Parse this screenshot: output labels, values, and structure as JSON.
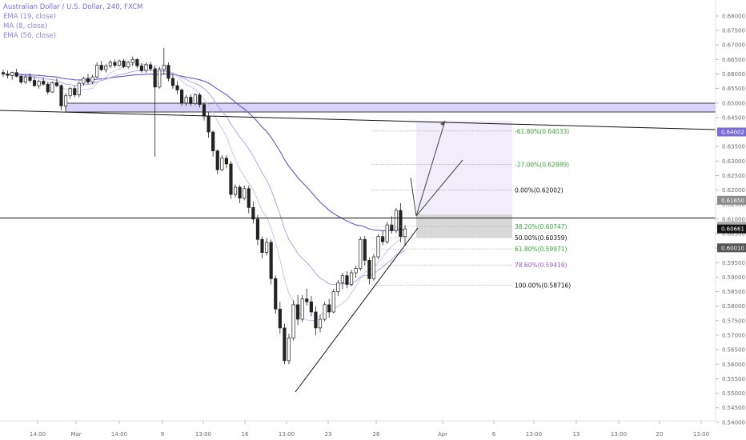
{
  "header": {
    "title": "Australian Dollar / U.S. Dollar, 240, FXCM",
    "indicators": [
      "EMA (19, close)",
      "MA (8, close)",
      "EMA (50, close)"
    ]
  },
  "chart_data": {
    "type": "candlestick",
    "ylim": [
      0.5405,
      0.6855
    ],
    "y_ticks": [
      "0.68000",
      "0.67500",
      "0.67000",
      "0.66500",
      "0.66000",
      "0.65500",
      "0.65000",
      "0.64500",
      "0.64000",
      "0.63500",
      "0.63000",
      "0.62500",
      "0.62000",
      "0.61500",
      "0.61000",
      "0.60500",
      "0.60000",
      "0.59500",
      "0.59000",
      "0.58500",
      "0.58000",
      "0.57500",
      "0.57000",
      "0.56500",
      "0.56000",
      "0.55500",
      "0.55000",
      "0.54500",
      "0.54000"
    ],
    "x_ticks": [
      "14:00",
      "Mar",
      "14:00",
      "9",
      "13:00",
      "16",
      "13:00",
      "23",
      "26",
      "Apr",
      "6",
      "13:00",
      "13",
      "13:00",
      "20",
      "13:00"
    ],
    "price_tags": [
      {
        "label": "0.64002",
        "value": 0.64002,
        "color": "#7b6bd6"
      },
      {
        "label": "0.61650",
        "value": 0.6165,
        "color": "#8a8a8a"
      },
      {
        "label": "0.60755",
        "value": 0.60755,
        "color": "#a9a9a9"
      },
      {
        "label": "0.60661",
        "value": 0.60661,
        "color": "#111111"
      },
      {
        "label": "0.60010",
        "value": 0.6001,
        "color": "#555555"
      }
    ],
    "fib_levels": [
      {
        "label": "-61.80%(0.64033)",
        "value": 0.64033,
        "color": "#3aa23a"
      },
      {
        "label": "-27.00%(0.62889)",
        "value": 0.62889,
        "color": "#3aa23a"
      },
      {
        "label": "0.00%(0.62002)",
        "value": 0.62002,
        "color": "#111111"
      },
      {
        "label": "38.20%(0.60747)",
        "value": 0.60747,
        "color": "#3aa23a"
      },
      {
        "label": "50.00%(0.60359)",
        "value": 0.60359,
        "color": "#111111"
      },
      {
        "label": "61.80%(0.59971)",
        "value": 0.59971,
        "color": "#3aa23a"
      },
      {
        "label": "78.60%(0.59419)",
        "value": 0.59419,
        "color": "#9a5ac8"
      },
      {
        "label": "100.00%(0.58716)",
        "value": 0.58716,
        "color": "#111111"
      }
    ],
    "candles": [
      [
        0.6605,
        0.6615,
        0.659,
        0.66
      ],
      [
        0.66,
        0.6612,
        0.6585,
        0.6595
      ],
      [
        0.6595,
        0.6608,
        0.658,
        0.6605
      ],
      [
        0.6605,
        0.6618,
        0.6588,
        0.6592
      ],
      [
        0.6592,
        0.66,
        0.6565,
        0.6572
      ],
      [
        0.6572,
        0.6595,
        0.6565,
        0.659
      ],
      [
        0.659,
        0.6602,
        0.657,
        0.6578
      ],
      [
        0.6578,
        0.659,
        0.6555,
        0.656
      ],
      [
        0.656,
        0.658,
        0.655,
        0.6575
      ],
      [
        0.6575,
        0.6588,
        0.656,
        0.6565
      ],
      [
        0.6565,
        0.6572,
        0.653,
        0.6538
      ],
      [
        0.6538,
        0.6575,
        0.6535,
        0.657
      ],
      [
        0.657,
        0.6585,
        0.6555,
        0.656
      ],
      [
        0.656,
        0.6565,
        0.6475,
        0.649
      ],
      [
        0.649,
        0.6535,
        0.648,
        0.6525
      ],
      [
        0.6525,
        0.6555,
        0.6515,
        0.655
      ],
      [
        0.655,
        0.656,
        0.652,
        0.6528
      ],
      [
        0.6528,
        0.6575,
        0.652,
        0.6568
      ],
      [
        0.6568,
        0.659,
        0.656,
        0.6585
      ],
      [
        0.6585,
        0.66,
        0.6565,
        0.6572
      ],
      [
        0.6572,
        0.6598,
        0.6565,
        0.659
      ],
      [
        0.659,
        0.664,
        0.6585,
        0.663
      ],
      [
        0.663,
        0.6645,
        0.661,
        0.6615
      ],
      [
        0.6615,
        0.6635,
        0.6605,
        0.6628
      ],
      [
        0.6628,
        0.6648,
        0.662,
        0.664
      ],
      [
        0.664,
        0.665,
        0.6622,
        0.663
      ],
      [
        0.663,
        0.665,
        0.6625,
        0.6645
      ],
      [
        0.6645,
        0.6652,
        0.662,
        0.6625
      ],
      [
        0.6625,
        0.6645,
        0.6618,
        0.664
      ],
      [
        0.664,
        0.666,
        0.6628,
        0.665
      ],
      [
        0.665,
        0.6655,
        0.662,
        0.6628
      ],
      [
        0.6628,
        0.6638,
        0.6605,
        0.6612
      ],
      [
        0.6612,
        0.664,
        0.6605,
        0.6632
      ],
      [
        0.6632,
        0.6642,
        0.661,
        0.6618
      ],
      [
        0.6618,
        0.663,
        0.6315,
        0.6555
      ],
      [
        0.6555,
        0.6625,
        0.655,
        0.6615
      ],
      [
        0.6615,
        0.669,
        0.66,
        0.663
      ],
      [
        0.663,
        0.664,
        0.6575,
        0.6585
      ],
      [
        0.6585,
        0.66,
        0.6548,
        0.656
      ],
      [
        0.656,
        0.6575,
        0.653,
        0.6545
      ],
      [
        0.6545,
        0.655,
        0.649,
        0.65
      ],
      [
        0.65,
        0.6528,
        0.649,
        0.652
      ],
      [
        0.652,
        0.653,
        0.649,
        0.6498
      ],
      [
        0.6498,
        0.6535,
        0.6492,
        0.6528
      ],
      [
        0.6528,
        0.6535,
        0.6485,
        0.6495
      ],
      [
        0.6495,
        0.6502,
        0.644,
        0.6455
      ],
      [
        0.6455,
        0.647,
        0.638,
        0.64
      ],
      [
        0.64,
        0.6405,
        0.6315,
        0.6335
      ],
      [
        0.6335,
        0.634,
        0.6255,
        0.627
      ],
      [
        0.627,
        0.632,
        0.6265,
        0.631
      ],
      [
        0.631,
        0.632,
        0.6275,
        0.629
      ],
      [
        0.629,
        0.63,
        0.617,
        0.6185
      ],
      [
        0.6185,
        0.622,
        0.6175,
        0.621
      ],
      [
        0.621,
        0.6218,
        0.6155,
        0.6172
      ],
      [
        0.6172,
        0.6215,
        0.6165,
        0.6205
      ],
      [
        0.6205,
        0.6215,
        0.612,
        0.614
      ],
      [
        0.614,
        0.616,
        0.6085,
        0.61
      ],
      [
        0.61,
        0.6115,
        0.601,
        0.603
      ],
      [
        0.603,
        0.604,
        0.5965,
        0.5985
      ],
      [
        0.5985,
        0.6035,
        0.5975,
        0.602
      ],
      [
        0.602,
        0.603,
        0.5875,
        0.5895
      ],
      [
        0.5895,
        0.5905,
        0.5775,
        0.579
      ],
      [
        0.579,
        0.5815,
        0.5705,
        0.5725
      ],
      [
        0.5725,
        0.574,
        0.56,
        0.5612
      ],
      [
        0.5612,
        0.5705,
        0.56,
        0.569
      ],
      [
        0.569,
        0.582,
        0.5682,
        0.5805
      ],
      [
        0.5805,
        0.5838,
        0.5735,
        0.5755
      ],
      [
        0.5755,
        0.5838,
        0.5745,
        0.5825
      ],
      [
        0.5825,
        0.586,
        0.5802,
        0.5815
      ],
      [
        0.5815,
        0.5835,
        0.5765,
        0.578
      ],
      [
        0.578,
        0.58,
        0.57,
        0.5725
      ],
      [
        0.5725,
        0.577,
        0.571,
        0.5755
      ],
      [
        0.5755,
        0.5815,
        0.5748,
        0.5805
      ],
      [
        0.5805,
        0.5825,
        0.576,
        0.578
      ],
      [
        0.578,
        0.586,
        0.5775,
        0.585
      ],
      [
        0.585,
        0.589,
        0.5835,
        0.588
      ],
      [
        0.588,
        0.5915,
        0.586,
        0.5905
      ],
      [
        0.5905,
        0.592,
        0.5862,
        0.5875
      ],
      [
        0.5875,
        0.5925,
        0.5868,
        0.5915
      ],
      [
        0.5915,
        0.594,
        0.5898,
        0.593
      ],
      [
        0.593,
        0.604,
        0.5922,
        0.603
      ],
      [
        0.603,
        0.6042,
        0.594,
        0.5958
      ],
      [
        0.5958,
        0.5968,
        0.5875,
        0.5895
      ],
      [
        0.5895,
        0.598,
        0.5888,
        0.597
      ],
      [
        0.597,
        0.6048,
        0.5962,
        0.604
      ],
      [
        0.604,
        0.606,
        0.601,
        0.6022
      ],
      [
        0.6022,
        0.609,
        0.6015,
        0.608
      ],
      [
        0.608,
        0.611,
        0.605,
        0.606
      ],
      [
        0.606,
        0.6138,
        0.6052,
        0.613
      ],
      [
        0.613,
        0.6155,
        0.602,
        0.604
      ],
      [
        0.604,
        0.608,
        0.601,
        0.6066
      ]
    ]
  }
}
